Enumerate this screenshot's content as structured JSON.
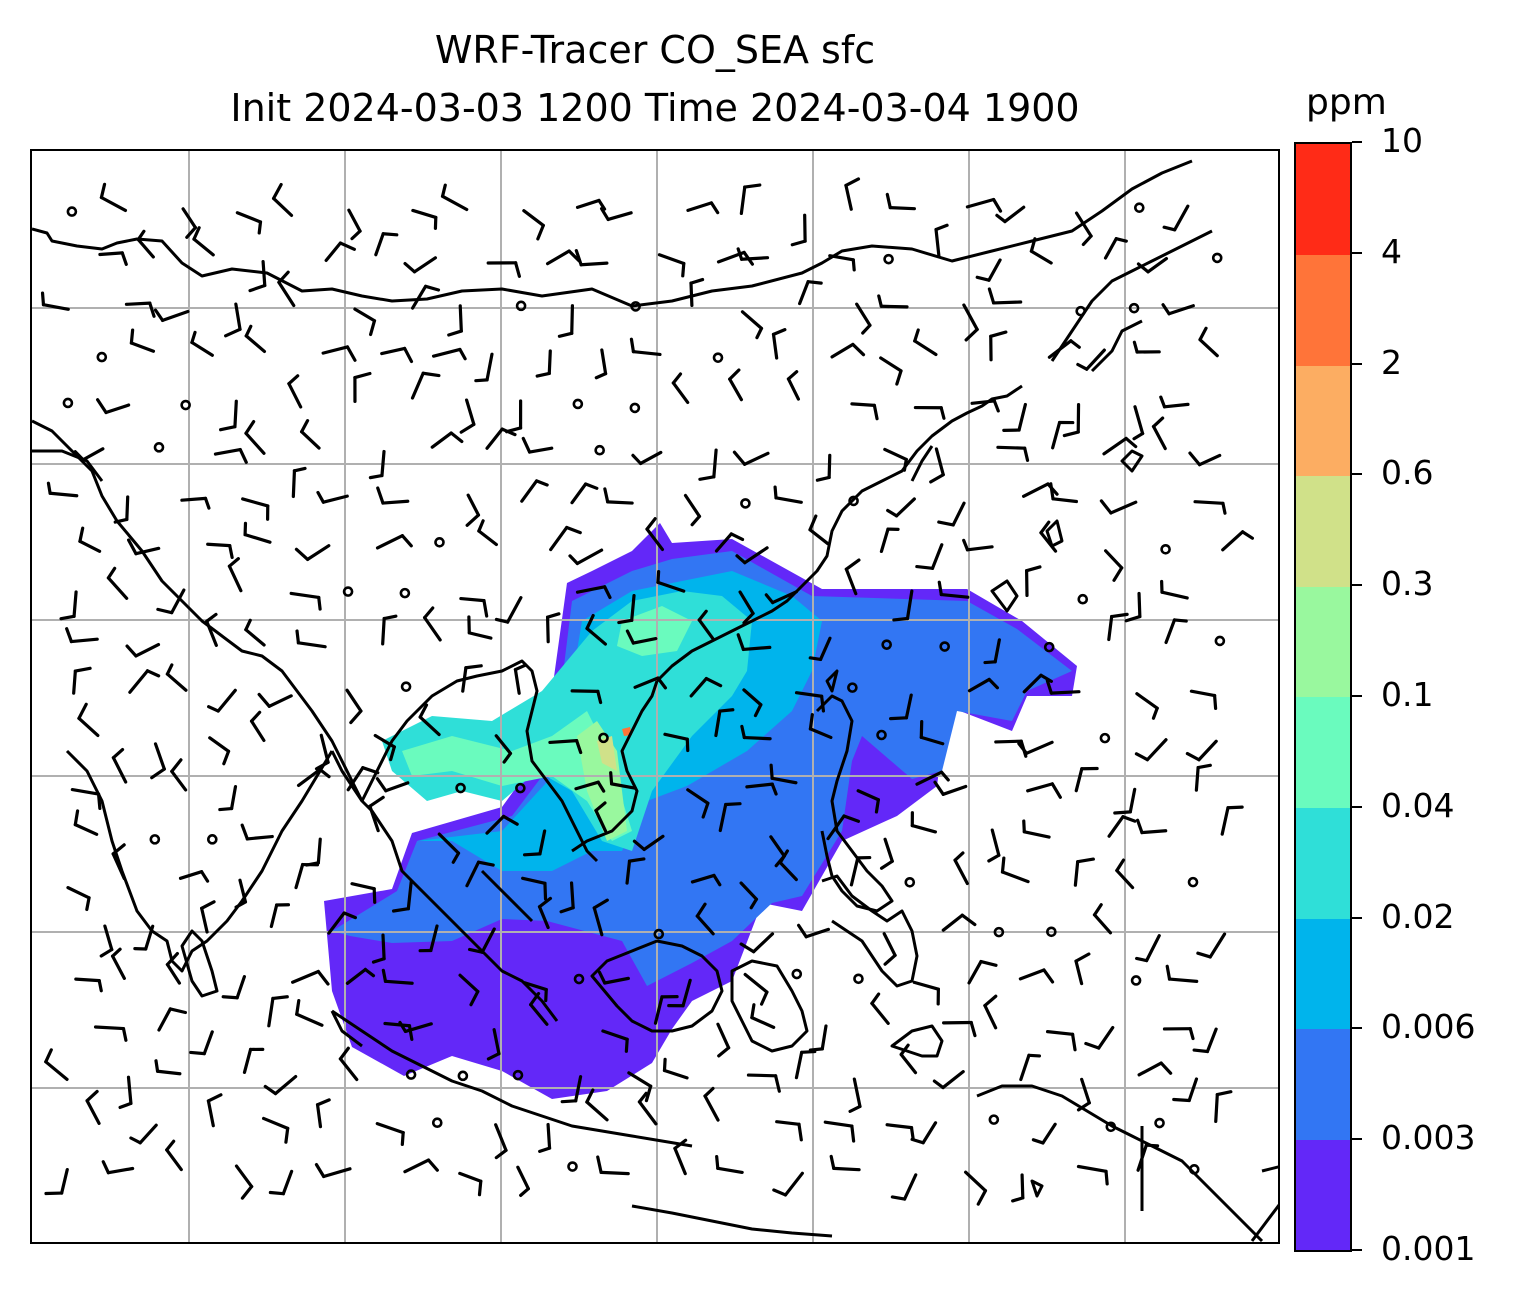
{
  "title": {
    "line1": "WRF-Tracer CO_SEA sfc",
    "line2": "Init 2024-03-03 1200 Time 2024-03-04 1900"
  },
  "colorbar": {
    "unit": "ppm",
    "ticks": [
      "0.001",
      "0.003",
      "0.006",
      "0.02",
      "0.04",
      "0.1",
      "0.3",
      "0.6",
      "2",
      "4",
      "10"
    ],
    "colors": [
      "#6328f8",
      "#3276f3",
      "#00b4ec",
      "#2fdfd8",
      "#6afbbe",
      "#99f89e",
      "#d0e189",
      "#fcad62",
      "#ff7439",
      "#ff2b17"
    ]
  },
  "map": {
    "gridlines": true,
    "coastline_color": "#000000",
    "gridline_color": "#b0b0b0"
  }
}
